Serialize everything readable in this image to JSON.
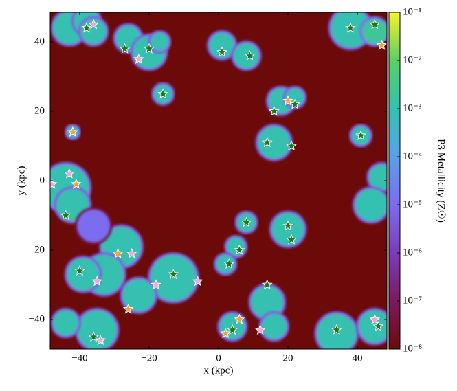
{
  "chart_data": {
    "type": "scatter",
    "xlabel": "x (kpc)",
    "ylabel": "y (kpc)",
    "xlim": [
      -48.5,
      48.5
    ],
    "ylim": [
      -48.5,
      48.5
    ],
    "xticks": [
      {
        "value": -40,
        "label": "−40"
      },
      {
        "value": -20,
        "label": "−20"
      },
      0,
      20,
      40
    ],
    "yticks": [
      {
        "value": -40,
        "label": "−40"
      },
      {
        "value": -20,
        "label": "−20"
      },
      0,
      20,
      40
    ],
    "colorbar": {
      "label": "P3 Metallicity (Z☉)",
      "log": true,
      "lim": [
        1e-08,
        0.1
      ],
      "ticks": [
        {
          "value": 0.1,
          "label": "10⁻¹"
        },
        {
          "value": 0.01,
          "label": "10⁻²"
        },
        {
          "value": 0.001,
          "label": "10⁻³"
        },
        {
          "value": 0.0001,
          "label": "10⁻⁴"
        },
        {
          "value": 1e-05,
          "label": "10⁻⁵"
        },
        {
          "value": 1e-06,
          "label": "10⁻⁶"
        },
        {
          "value": 1e-07,
          "label": "10⁻⁷"
        },
        {
          "value": 1e-08,
          "label": "10⁻⁸"
        }
      ],
      "colors": [
        "#6c0a0a",
        "#7a1a60",
        "#7c3cb8",
        "#7c6cf0",
        "#5aa0e8",
        "#34c0b0",
        "#5ad065",
        "#f5f52a"
      ]
    },
    "regions": {
      "x": [
        -43,
        -38,
        -36,
        -26,
        -20,
        -17,
        -16,
        1,
        8,
        18,
        22,
        16,
        41,
        38,
        45,
        -42,
        -44,
        -42,
        47,
        44,
        8,
        20,
        5,
        2,
        -28,
        -33,
        -39,
        -13,
        -23,
        -35,
        -44,
        4,
        14,
        16,
        34,
        45,
        -36
      ],
      "y": [
        44,
        46,
        43,
        41,
        37,
        40,
        25,
        39,
        36,
        23,
        24,
        11,
        13,
        44,
        43,
        14,
        -2,
        -7,
        1,
        -7,
        -12,
        -14,
        -19,
        -24,
        -19,
        -27,
        -27,
        -28,
        -33,
        -43,
        -41,
        -42,
        -35,
        -42,
        -44,
        -42,
        -13
      ],
      "r": [
        5,
        4,
        4,
        4,
        5,
        3,
        3,
        4,
        4,
        4,
        3,
        5,
        3,
        6,
        4,
        2,
        7,
        5,
        4,
        5,
        3,
        5,
        3,
        3,
        6,
        6,
        5,
        7,
        5,
        6,
        4,
        4,
        5,
        4,
        6,
        5,
        5
      ],
      "values": [
        0.001,
        0.001,
        0.001,
        0.001,
        0.001,
        0.001,
        0.001,
        0.001,
        0.001,
        0.001,
        0.001,
        0.001,
        0.001,
        0.001,
        0.002,
        0.001,
        0.001,
        0.001,
        0.001,
        0.001,
        0.001,
        0.001,
        0.001,
        0.001,
        0.001,
        0.001,
        0.001,
        0.001,
        0.001,
        0.001,
        0.001,
        0.001,
        0.001,
        0.001,
        0.001,
        0.001,
        1e-05
      ]
    },
    "series": [
      {
        "color": "#1b7a1b",
        "x": [
          -38,
          -27,
          -20,
          -16,
          1,
          9,
          16,
          22,
          14,
          21,
          41,
          38,
          45,
          8,
          20,
          21,
          6,
          3,
          -40,
          -13,
          14,
          4,
          34,
          46,
          -44,
          -36
        ],
        "y": [
          44,
          38,
          38,
          25,
          37,
          36,
          20,
          22,
          11,
          10,
          13,
          44,
          45,
          -12,
          -13,
          -17,
          -20,
          -24,
          -26,
          -27,
          -30,
          -43,
          -43,
          -42,
          -10,
          -45
        ]
      },
      {
        "color": "#f2a6d8",
        "x": [
          -36,
          -23,
          -43,
          -48,
          -25,
          -35,
          -18,
          -6,
          12,
          45,
          -34
        ],
        "y": [
          45,
          35,
          2,
          -1,
          -21,
          -29,
          -30,
          -29,
          -43,
          -40,
          -46
        ]
      },
      {
        "color": "#f5a23a",
        "x": [
          20,
          -42,
          -41,
          -29,
          -26,
          6,
          2,
          47
        ],
        "y": [
          23,
          14,
          -1,
          -21,
          -37,
          -40,
          -44,
          39
        ]
      }
    ]
  }
}
